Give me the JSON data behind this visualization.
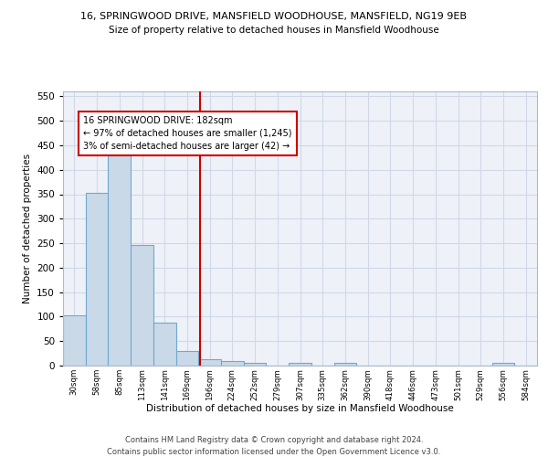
{
  "title_line1": "16, SPRINGWOOD DRIVE, MANSFIELD WOODHOUSE, MANSFIELD, NG19 9EB",
  "title_line2": "Size of property relative to detached houses in Mansfield Woodhouse",
  "xlabel": "Distribution of detached houses by size in Mansfield Woodhouse",
  "ylabel": "Number of detached properties",
  "footer_line1": "Contains HM Land Registry data © Crown copyright and database right 2024.",
  "footer_line2": "Contains public sector information licensed under the Open Government Licence v3.0.",
  "categories": [
    "30sqm",
    "58sqm",
    "85sqm",
    "113sqm",
    "141sqm",
    "169sqm",
    "196sqm",
    "224sqm",
    "252sqm",
    "279sqm",
    "307sqm",
    "335sqm",
    "362sqm",
    "390sqm",
    "418sqm",
    "446sqm",
    "473sqm",
    "501sqm",
    "529sqm",
    "556sqm",
    "584sqm"
  ],
  "values": [
    103,
    353,
    447,
    246,
    88,
    30,
    14,
    9,
    5,
    0,
    5,
    0,
    5,
    0,
    0,
    0,
    0,
    0,
    0,
    5,
    0
  ],
  "bar_color": "#c9d9e8",
  "bar_edge_color": "#6fa8d0",
  "grid_color": "#d0d8e8",
  "background_color": "#eef2f8",
  "vline_x": 5.57,
  "vline_color": "#cc0000",
  "annotation_text": "16 SPRINGWOOD DRIVE: 182sqm\n← 97% of detached houses are smaller (1,245)\n3% of semi-detached houses are larger (42) →",
  "annotation_box_color": "#ffffff",
  "annotation_box_edge": "#cc0000",
  "ylim": [
    0,
    560
  ],
  "yticks": [
    0,
    50,
    100,
    150,
    200,
    250,
    300,
    350,
    400,
    450,
    500,
    550
  ]
}
